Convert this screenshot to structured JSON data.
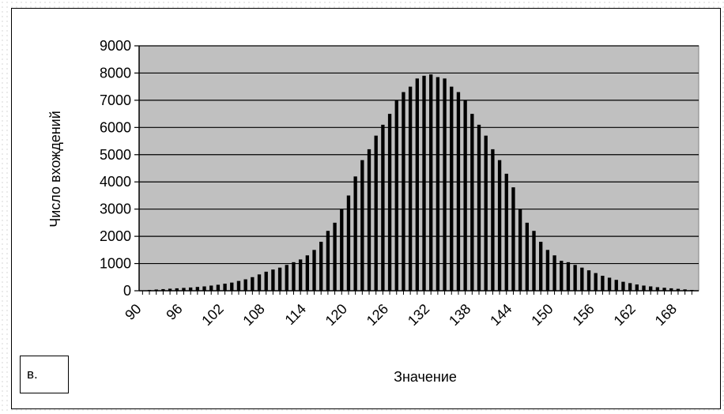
{
  "panel_label": "в.",
  "chart_data": {
    "type": "bar",
    "xlabel": "Значение",
    "ylabel": "Число вхождений",
    "ylim": [
      0,
      9000
    ],
    "yticks": [
      0,
      1000,
      2000,
      3000,
      4000,
      5000,
      6000,
      7000,
      8000,
      9000
    ],
    "xticks": [
      90,
      96,
      102,
      108,
      114,
      120,
      126,
      132,
      138,
      144,
      150,
      156,
      162,
      168
    ],
    "grid": true,
    "legend": "none",
    "colors": {
      "plot_background": "#c0c0c0",
      "bar": "#000000",
      "gridline": "#000000"
    },
    "x": [
      92,
      93,
      94,
      95,
      96,
      97,
      98,
      99,
      100,
      101,
      102,
      103,
      104,
      105,
      106,
      107,
      108,
      109,
      110,
      111,
      112,
      113,
      114,
      115,
      116,
      117,
      118,
      119,
      120,
      121,
      122,
      123,
      124,
      125,
      126,
      127,
      128,
      129,
      130,
      131,
      132,
      133,
      134,
      135,
      136,
      137,
      138,
      139,
      140,
      141,
      142,
      143,
      144,
      145,
      146,
      147,
      148,
      149,
      150,
      151,
      152,
      153,
      154,
      155,
      156,
      157,
      158,
      159,
      160,
      161,
      162,
      163,
      164,
      165,
      166,
      167,
      168,
      169,
      170,
      171
    ],
    "values": [
      30,
      45,
      60,
      75,
      90,
      105,
      120,
      140,
      160,
      190,
      220,
      260,
      300,
      360,
      420,
      500,
      600,
      700,
      780,
      850,
      950,
      1050,
      1150,
      1300,
      1500,
      1800,
      2200,
      2500,
      3000,
      3500,
      4200,
      4800,
      5200,
      5700,
      6100,
      6500,
      7000,
      7300,
      7500,
      7800,
      7900,
      7950,
      7850,
      7800,
      7500,
      7300,
      7000,
      6500,
      6100,
      5700,
      5200,
      4800,
      4300,
      3800,
      3000,
      2500,
      2200,
      1800,
      1500,
      1300,
      1100,
      1050,
      950,
      850,
      750,
      650,
      550,
      480,
      400,
      330,
      280,
      230,
      190,
      160,
      130,
      110,
      90,
      70,
      50,
      30
    ]
  }
}
